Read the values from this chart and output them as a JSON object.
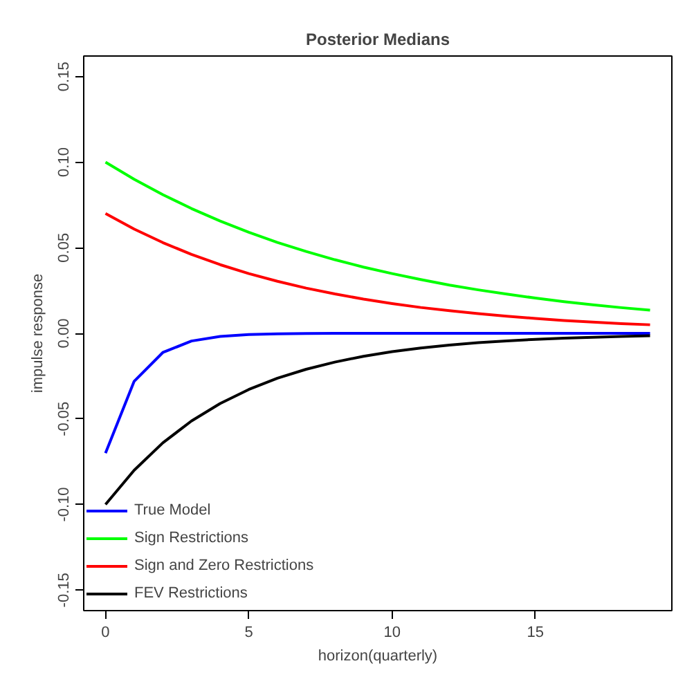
{
  "chart_data": {
    "type": "line",
    "title": "Posterior Medians",
    "xlabel": "horizon(quarterly)",
    "ylabel": "impulse response",
    "x": [
      0,
      1,
      2,
      3,
      4,
      5,
      6,
      7,
      8,
      9,
      10,
      11,
      12,
      13,
      14,
      15,
      16,
      17,
      18,
      19
    ],
    "xlim": [
      -0.76,
      19.76
    ],
    "xticks": [
      0,
      5,
      10,
      15
    ],
    "ylim": [
      -0.162,
      0.162
    ],
    "yticks": [
      {
        "value": -0.15,
        "label": "-0.15"
      },
      {
        "value": -0.1,
        "label": "-0.10"
      },
      {
        "value": -0.05,
        "label": "-0.05"
      },
      {
        "value": 0,
        "label": "0.00"
      },
      {
        "value": 0.05,
        "label": "0.05"
      },
      {
        "value": 0.1,
        "label": "0.10"
      },
      {
        "value": 0.15,
        "label": "0.15"
      }
    ],
    "series": [
      {
        "name": "True Model",
        "color": "#0000ff",
        "values": [
          -0.07,
          -0.028,
          -0.0112,
          -0.0045,
          -0.0018,
          -0.0007,
          -0.0003,
          -0.0001,
          0,
          0,
          0,
          0,
          0,
          0,
          0,
          0,
          0,
          0,
          0,
          0
        ]
      },
      {
        "name": "Sign Restrictions",
        "color": "#00ff00",
        "values": [
          0.1,
          0.09,
          0.081,
          0.0729,
          0.0656,
          0.059,
          0.0531,
          0.0478,
          0.043,
          0.0387,
          0.0349,
          0.0314,
          0.0282,
          0.0254,
          0.0229,
          0.0206,
          0.0185,
          0.0167,
          0.015,
          0.0135
        ]
      },
      {
        "name": "Sign and Zero Restrictions",
        "color": "#ff0000",
        "values": [
          0.07,
          0.0609,
          0.053,
          0.0461,
          0.0401,
          0.0349,
          0.0304,
          0.0264,
          0.023,
          0.02,
          0.0174,
          0.0151,
          0.0132,
          0.0115,
          0.01,
          0.0087,
          0.0075,
          0.0066,
          0.0057,
          0.005
        ]
      },
      {
        "name": "FEV Restrictions",
        "color": "#000000",
        "values": [
          -0.1,
          -0.08,
          -0.064,
          -0.0512,
          -0.041,
          -0.0328,
          -0.0262,
          -0.021,
          -0.0168,
          -0.0134,
          -0.0107,
          -0.0086,
          -0.0069,
          -0.0055,
          -0.0044,
          -0.0035,
          -0.0028,
          -0.0023,
          -0.0018,
          -0.0014
        ]
      }
    ],
    "legend": "bottom left",
    "grid": false,
    "line_style": "solid"
  }
}
